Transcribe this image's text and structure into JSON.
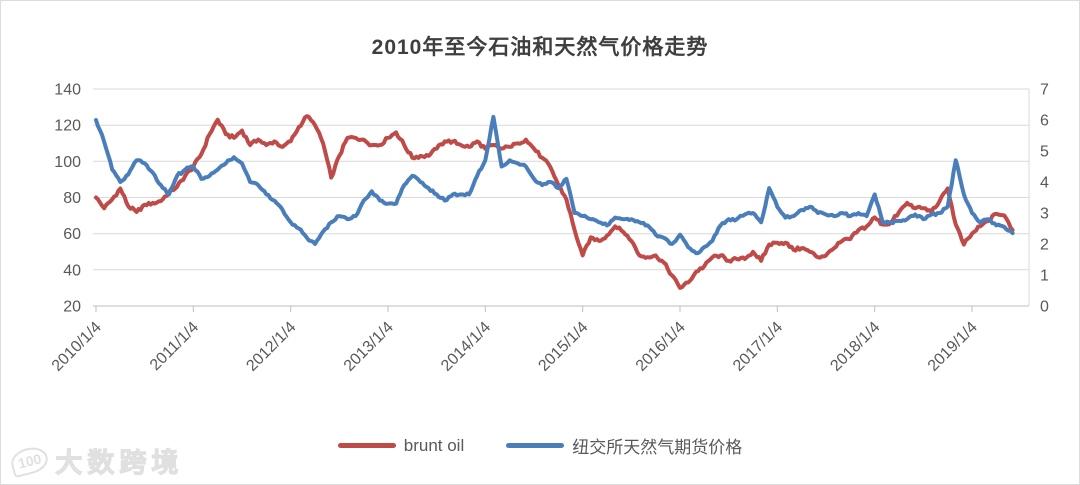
{
  "title": "2010年至今石油和天然气价格走势",
  "watermark": {
    "logo": "100",
    "text": "大数跨境"
  },
  "legend": [
    {
      "label": "brunt oil",
      "color": "#be4b48"
    },
    {
      "label": "纽交所天然气期货价格",
      "color": "#4a7ebb"
    }
  ],
  "colors": {
    "grid": "#d9d9d9",
    "axis": "#bfbfbf",
    "tick_label": "#595959",
    "title": "#3f3f3f"
  },
  "chart_data": {
    "type": "line",
    "title": "2010年至今石油和天然气价格走势",
    "grid": "horizontal",
    "legend_position": "bottom",
    "x_unit": "months since 2010-01, one point per month",
    "x_tick_labels": [
      "2010/1/4",
      "2011/1/4",
      "2012/1/4",
      "2013/1/4",
      "2014/1/4",
      "2015/1/4",
      "2016/1/4",
      "2017/1/4",
      "2018/1/4",
      "2019/1/4"
    ],
    "left_axis": {
      "ticks": [
        140,
        120,
        100,
        80,
        60,
        40,
        20
      ],
      "range": [
        20,
        140
      ]
    },
    "right_axis": {
      "ticks": [
        7,
        6,
        5,
        4,
        3,
        2,
        1,
        0
      ],
      "range": [
        0,
        7
      ]
    },
    "series": [
      {
        "name": "brunt oil",
        "axis": "left",
        "color": "#be4b48",
        "values": [
          80,
          74,
          79,
          85,
          75,
          72,
          76,
          77,
          78,
          83,
          86,
          92,
          97,
          104,
          115,
          123,
          115,
          113,
          117,
          109,
          112,
          109,
          111,
          108,
          111,
          119,
          125,
          120,
          110,
          91,
          103,
          113,
          113,
          112,
          109,
          109,
          113,
          116,
          109,
          102,
          103,
          103,
          107,
          111,
          111,
          109,
          108,
          111,
          107,
          109,
          107,
          108,
          110,
          112,
          107,
          102,
          97,
          87,
          79,
          62,
          48,
          58,
          56,
          59,
          64,
          61,
          56,
          48,
          47,
          48,
          44,
          37,
          30,
          33,
          39,
          42,
          47,
          48,
          45,
          46,
          46,
          50,
          45,
          54,
          55,
          55,
          51,
          52,
          50,
          47,
          48,
          52,
          56,
          57,
          62,
          64,
          69,
          65,
          66,
          72,
          77,
          74,
          74,
          72,
          78,
          85,
          65,
          54,
          60,
          64,
          67,
          71,
          70,
          62
        ]
      },
      {
        "name": "纽交所天然气期货价格",
        "axis": "right",
        "color": "#4a7ebb",
        "values": [
          6.0,
          5.3,
          4.4,
          4.0,
          4.25,
          4.7,
          4.6,
          4.3,
          3.9,
          3.6,
          4.2,
          4.4,
          4.5,
          4.1,
          4.2,
          4.4,
          4.6,
          4.8,
          4.6,
          4.0,
          3.9,
          3.6,
          3.4,
          3.1,
          2.7,
          2.5,
          2.2,
          2.0,
          2.4,
          2.7,
          2.9,
          2.8,
          2.9,
          3.4,
          3.7,
          3.4,
          3.3,
          3.3,
          3.9,
          4.2,
          4.0,
          3.8,
          3.6,
          3.4,
          3.6,
          3.6,
          3.6,
          4.2,
          4.7,
          6.1,
          4.5,
          4.7,
          4.6,
          4.5,
          4.1,
          3.9,
          4.0,
          3.8,
          4.1,
          3.0,
          2.9,
          2.8,
          2.7,
          2.6,
          2.85,
          2.8,
          2.8,
          2.7,
          2.6,
          2.3,
          2.2,
          2.0,
          2.3,
          1.9,
          1.7,
          1.9,
          2.1,
          2.6,
          2.8,
          2.8,
          2.95,
          3.0,
          2.7,
          3.8,
          3.2,
          2.85,
          2.9,
          3.1,
          3.2,
          3.0,
          2.95,
          2.9,
          3.0,
          2.9,
          3.0,
          2.9,
          3.6,
          2.7,
          2.7,
          2.75,
          2.8,
          2.95,
          2.8,
          2.95,
          3.0,
          3.2,
          4.7,
          3.6,
          3.0,
          2.7,
          2.8,
          2.6,
          2.55,
          2.35
        ]
      }
    ]
  }
}
